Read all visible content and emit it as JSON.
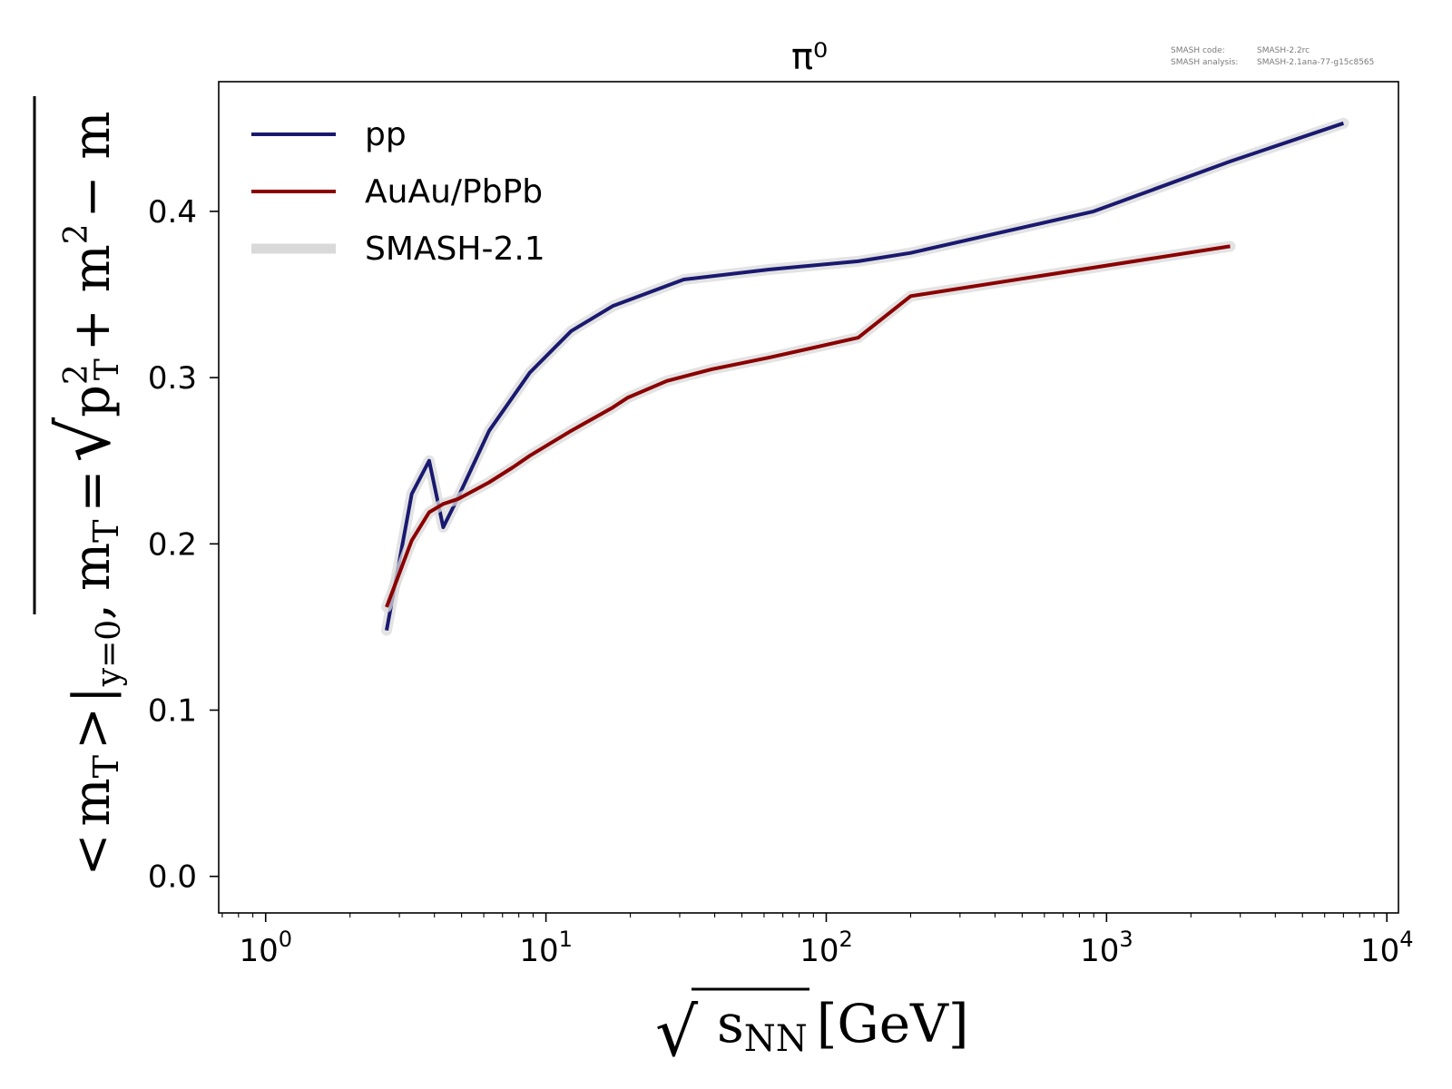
{
  "meta": {
    "code_label": "SMASH code:",
    "code_value": "SMASH-2.2rc",
    "analysis_label": "SMASH analysis:",
    "analysis_value": "SMASH-2.1ana-77-g15c8565"
  },
  "chart_data": {
    "type": "line",
    "title": "π⁰",
    "x_scale": "log",
    "xlim": [
      0.68,
      11000
    ],
    "ylim": [
      -0.022,
      0.478
    ],
    "grid": false,
    "legend_position": "top-left",
    "x_ticks": [
      1,
      10,
      100,
      1000,
      10000
    ],
    "x_tick_labels": [
      {
        "base": "10",
        "exp": "0"
      },
      {
        "base": "10",
        "exp": "1"
      },
      {
        "base": "10",
        "exp": "2"
      },
      {
        "base": "10",
        "exp": "3"
      },
      {
        "base": "10",
        "exp": "4"
      }
    ],
    "y_ticks": [
      0.0,
      0.1,
      0.2,
      0.3,
      0.4
    ],
    "y_tick_labels": [
      "0.0",
      "0.1",
      "0.2",
      "0.3",
      "0.4"
    ],
    "xlabel": {
      "radical": "√",
      "symbol": "s",
      "sub": "NN",
      "unit": "[GeV]"
    },
    "ylabel": {
      "p1": "<",
      "p2": "m",
      "p3": "T",
      "p4": ">",
      "p5": "|",
      "p6": "y=0",
      "p7": ",",
      "p8": "m",
      "p9": "T",
      "p10": "=",
      "p11": "√",
      "p12": "p",
      "p13": "2",
      "p14": "T",
      "p15": "+ m",
      "p16": "2",
      "p17": "− m"
    },
    "series": [
      {
        "name": "pp",
        "color": "#191970",
        "x": [
          2.7,
          3.32,
          3.83,
          4.3,
          4.86,
          6.27,
          8.76,
          12.3,
          17.3,
          31.0,
          62.4,
          130,
          200,
          900,
          2760,
          7000
        ],
        "y": [
          0.148,
          0.23,
          0.25,
          0.21,
          0.228,
          0.268,
          0.303,
          0.328,
          0.343,
          0.359,
          0.365,
          0.37,
          0.375,
          0.4,
          0.43,
          0.453
        ]
      },
      {
        "name": "AuAu/PbPb",
        "color": "#8b0000",
        "x": [
          2.7,
          3.32,
          3.83,
          4.3,
          4.86,
          6.27,
          7.62,
          8.76,
          12.3,
          17.3,
          19.6,
          27.0,
          39.0,
          62.4,
          130,
          200,
          2760
        ],
        "y": [
          0.162,
          0.202,
          0.219,
          0.224,
          0.227,
          0.237,
          0.246,
          0.253,
          0.268,
          0.282,
          0.288,
          0.298,
          0.305,
          0.312,
          0.324,
          0.349,
          0.379
        ]
      }
    ],
    "legend": [
      {
        "label": "pp",
        "color": "#191970",
        "kind": "line"
      },
      {
        "label": "AuAu/PbPb",
        "color": "#8b0000",
        "kind": "line"
      },
      {
        "label": "SMASH-2.1",
        "color": "#d9d9d9",
        "kind": "band"
      }
    ],
    "band_color": "#d9d9d9"
  }
}
